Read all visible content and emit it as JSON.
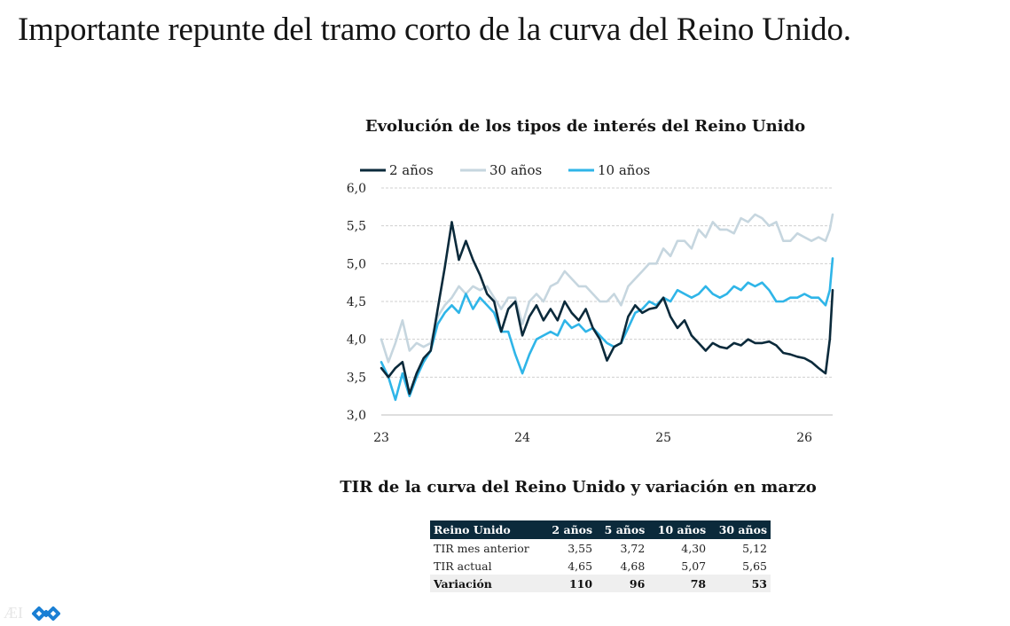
{
  "slide": {
    "title": "Importante repunte del tramo corto de la curva del Reino Unido."
  },
  "chart_data": {
    "type": "line",
    "title": "Evolución de los tipos de interés del Reino Unido",
    "xlabel": "",
    "ylabel": "",
    "x_tick_labels": [
      "23",
      "24",
      "25",
      "26"
    ],
    "y_tick_labels": [
      "6,0",
      "5,5",
      "5,0",
      "4,5",
      "4,0",
      "3,5",
      "3,0"
    ],
    "ylim": [
      3.0,
      6.0
    ],
    "grid": true,
    "legend_position": "top-left",
    "series": [
      {
        "name": "2 años",
        "color": "#0b2a3b",
        "points": [
          [
            2023.0,
            3.62
          ],
          [
            2023.05,
            3.5
          ],
          [
            2023.1,
            3.62
          ],
          [
            2023.15,
            3.7
          ],
          [
            2023.2,
            3.28
          ],
          [
            2023.25,
            3.55
          ],
          [
            2023.3,
            3.75
          ],
          [
            2023.35,
            3.85
          ],
          [
            2023.4,
            4.4
          ],
          [
            2023.45,
            4.95
          ],
          [
            2023.5,
            5.55
          ],
          [
            2023.55,
            5.05
          ],
          [
            2023.6,
            5.3
          ],
          [
            2023.65,
            5.05
          ],
          [
            2023.7,
            4.85
          ],
          [
            2023.75,
            4.6
          ],
          [
            2023.8,
            4.5
          ],
          [
            2023.85,
            4.1
          ],
          [
            2023.9,
            4.4
          ],
          [
            2023.95,
            4.5
          ],
          [
            2024.0,
            4.05
          ],
          [
            2024.05,
            4.3
          ],
          [
            2024.1,
            4.45
          ],
          [
            2024.15,
            4.25
          ],
          [
            2024.2,
            4.4
          ],
          [
            2024.25,
            4.25
          ],
          [
            2024.3,
            4.5
          ],
          [
            2024.35,
            4.35
          ],
          [
            2024.4,
            4.25
          ],
          [
            2024.45,
            4.4
          ],
          [
            2024.5,
            4.15
          ],
          [
            2024.55,
            4.0
          ],
          [
            2024.6,
            3.72
          ],
          [
            2024.65,
            3.9
          ],
          [
            2024.7,
            3.95
          ],
          [
            2024.75,
            4.3
          ],
          [
            2024.8,
            4.45
          ],
          [
            2024.85,
            4.35
          ],
          [
            2024.9,
            4.4
          ],
          [
            2024.95,
            4.42
          ],
          [
            2025.0,
            4.55
          ],
          [
            2025.05,
            4.3
          ],
          [
            2025.1,
            4.15
          ],
          [
            2025.15,
            4.25
          ],
          [
            2025.2,
            4.05
          ],
          [
            2025.25,
            3.95
          ],
          [
            2025.3,
            3.85
          ],
          [
            2025.35,
            3.95
          ],
          [
            2025.4,
            3.9
          ],
          [
            2025.45,
            3.88
          ],
          [
            2025.5,
            3.95
          ],
          [
            2025.55,
            3.92
          ],
          [
            2025.6,
            4.0
          ],
          [
            2025.65,
            3.95
          ],
          [
            2025.7,
            3.95
          ],
          [
            2025.75,
            3.97
          ],
          [
            2025.8,
            3.92
          ],
          [
            2025.85,
            3.82
          ],
          [
            2025.9,
            3.8
          ],
          [
            2025.95,
            3.77
          ],
          [
            2026.0,
            3.75
          ],
          [
            2026.05,
            3.7
          ],
          [
            2026.1,
            3.62
          ],
          [
            2026.15,
            3.55
          ],
          [
            2026.18,
            4.0
          ],
          [
            2026.2,
            4.65
          ]
        ]
      },
      {
        "name": "30 años",
        "color": "#c6d6df",
        "points": [
          [
            2023.0,
            4.0
          ],
          [
            2023.05,
            3.7
          ],
          [
            2023.1,
            3.95
          ],
          [
            2023.15,
            4.25
          ],
          [
            2023.2,
            3.85
          ],
          [
            2023.25,
            3.95
          ],
          [
            2023.3,
            3.9
          ],
          [
            2023.35,
            3.95
          ],
          [
            2023.4,
            4.3
          ],
          [
            2023.45,
            4.45
          ],
          [
            2023.5,
            4.55
          ],
          [
            2023.55,
            4.7
          ],
          [
            2023.6,
            4.6
          ],
          [
            2023.65,
            4.7
          ],
          [
            2023.7,
            4.65
          ],
          [
            2023.75,
            4.7
          ],
          [
            2023.8,
            4.55
          ],
          [
            2023.85,
            4.4
          ],
          [
            2023.9,
            4.55
          ],
          [
            2023.95,
            4.55
          ],
          [
            2024.0,
            4.2
          ],
          [
            2024.05,
            4.5
          ],
          [
            2024.1,
            4.6
          ],
          [
            2024.15,
            4.5
          ],
          [
            2024.2,
            4.7
          ],
          [
            2024.25,
            4.75
          ],
          [
            2024.3,
            4.9
          ],
          [
            2024.35,
            4.8
          ],
          [
            2024.4,
            4.7
          ],
          [
            2024.45,
            4.7
          ],
          [
            2024.5,
            4.6
          ],
          [
            2024.55,
            4.5
          ],
          [
            2024.6,
            4.5
          ],
          [
            2024.65,
            4.6
          ],
          [
            2024.7,
            4.45
          ],
          [
            2024.75,
            4.7
          ],
          [
            2024.8,
            4.8
          ],
          [
            2024.85,
            4.9
          ],
          [
            2024.9,
            5.0
          ],
          [
            2024.95,
            5.0
          ],
          [
            2025.0,
            5.2
          ],
          [
            2025.05,
            5.1
          ],
          [
            2025.1,
            5.3
          ],
          [
            2025.15,
            5.3
          ],
          [
            2025.2,
            5.2
          ],
          [
            2025.25,
            5.45
          ],
          [
            2025.3,
            5.35
          ],
          [
            2025.35,
            5.55
          ],
          [
            2025.4,
            5.45
          ],
          [
            2025.45,
            5.45
          ],
          [
            2025.5,
            5.4
          ],
          [
            2025.55,
            5.6
          ],
          [
            2025.6,
            5.55
          ],
          [
            2025.65,
            5.65
          ],
          [
            2025.7,
            5.6
          ],
          [
            2025.75,
            5.5
          ],
          [
            2025.8,
            5.55
          ],
          [
            2025.85,
            5.3
          ],
          [
            2025.9,
            5.3
          ],
          [
            2025.95,
            5.4
          ],
          [
            2026.0,
            5.35
          ],
          [
            2026.05,
            5.3
          ],
          [
            2026.1,
            5.35
          ],
          [
            2026.15,
            5.3
          ],
          [
            2026.18,
            5.45
          ],
          [
            2026.2,
            5.65
          ]
        ]
      },
      {
        "name": "10 años",
        "color": "#2fb5e8",
        "points": [
          [
            2023.0,
            3.7
          ],
          [
            2023.05,
            3.5
          ],
          [
            2023.1,
            3.2
          ],
          [
            2023.15,
            3.55
          ],
          [
            2023.2,
            3.25
          ],
          [
            2023.25,
            3.5
          ],
          [
            2023.3,
            3.7
          ],
          [
            2023.35,
            3.85
          ],
          [
            2023.4,
            4.2
          ],
          [
            2023.45,
            4.35
          ],
          [
            2023.5,
            4.45
          ],
          [
            2023.55,
            4.35
          ],
          [
            2023.6,
            4.6
          ],
          [
            2023.65,
            4.4
          ],
          [
            2023.7,
            4.55
          ],
          [
            2023.75,
            4.45
          ],
          [
            2023.8,
            4.35
          ],
          [
            2023.85,
            4.1
          ],
          [
            2023.9,
            4.1
          ],
          [
            2023.95,
            3.8
          ],
          [
            2024.0,
            3.55
          ],
          [
            2024.05,
            3.8
          ],
          [
            2024.1,
            4.0
          ],
          [
            2024.15,
            4.05
          ],
          [
            2024.2,
            4.1
          ],
          [
            2024.25,
            4.05
          ],
          [
            2024.3,
            4.25
          ],
          [
            2024.35,
            4.15
          ],
          [
            2024.4,
            4.2
          ],
          [
            2024.45,
            4.1
          ],
          [
            2024.5,
            4.15
          ],
          [
            2024.55,
            4.05
          ],
          [
            2024.6,
            3.95
          ],
          [
            2024.65,
            3.9
          ],
          [
            2024.7,
            3.95
          ],
          [
            2024.75,
            4.15
          ],
          [
            2024.8,
            4.35
          ],
          [
            2024.85,
            4.4
          ],
          [
            2024.9,
            4.5
          ],
          [
            2024.95,
            4.45
          ],
          [
            2025.0,
            4.55
          ],
          [
            2025.05,
            4.5
          ],
          [
            2025.1,
            4.65
          ],
          [
            2025.15,
            4.6
          ],
          [
            2025.2,
            4.55
          ],
          [
            2025.25,
            4.6
          ],
          [
            2025.3,
            4.7
          ],
          [
            2025.35,
            4.6
          ],
          [
            2025.4,
            4.55
          ],
          [
            2025.45,
            4.6
          ],
          [
            2025.5,
            4.7
          ],
          [
            2025.55,
            4.65
          ],
          [
            2025.6,
            4.75
          ],
          [
            2025.65,
            4.7
          ],
          [
            2025.7,
            4.75
          ],
          [
            2025.75,
            4.65
          ],
          [
            2025.8,
            4.5
          ],
          [
            2025.85,
            4.5
          ],
          [
            2025.9,
            4.55
          ],
          [
            2025.95,
            4.55
          ],
          [
            2026.0,
            4.6
          ],
          [
            2026.05,
            4.55
          ],
          [
            2026.1,
            4.55
          ],
          [
            2026.15,
            4.45
          ],
          [
            2026.18,
            4.65
          ],
          [
            2026.2,
            5.07
          ]
        ]
      }
    ],
    "xlim": [
      2023.0,
      2026.2
    ]
  },
  "table": {
    "title": "TIR de la curva del Reino Unido y variación en marzo",
    "headers": [
      "Reino Unido",
      "2 años",
      "5 años",
      "10 años",
      "30 años"
    ],
    "rows": [
      [
        "TIR mes anterior",
        "3,55",
        "3,72",
        "4,30",
        "5,12"
      ],
      [
        "TIR actual",
        "4,65",
        "4,68",
        "5,07",
        "5,65"
      ],
      [
        "Variación",
        "110",
        "96",
        "78",
        "53"
      ]
    ]
  },
  "colors": {
    "navy": "#0b2a3b",
    "light_blue": "#2fb5e8",
    "pale_gray_blue": "#c6d6df",
    "logo_blue": "#1a7fd4"
  },
  "logo": {
    "icon": "infinity-logo-icon"
  }
}
